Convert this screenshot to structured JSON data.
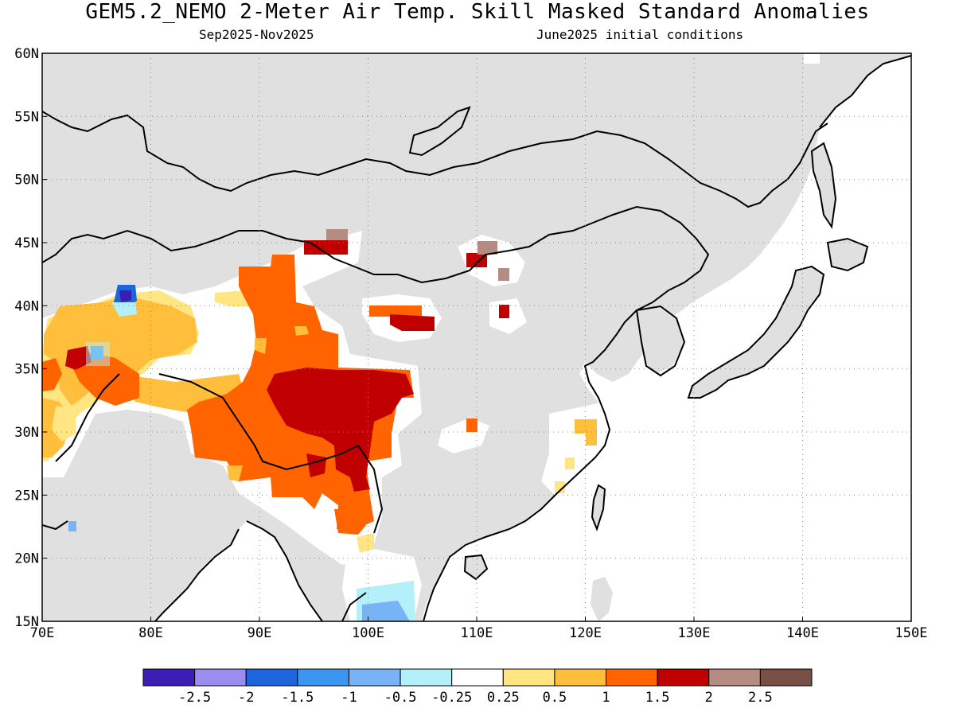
{
  "title": "GEM5.2_NEMO 2-Meter Air Temp. Skill Masked Standard Anomalies",
  "subtitle_left": "Sep2025-Nov2025",
  "subtitle_right": "June2025 initial conditions",
  "map": {
    "lon_range": [
      70,
      150
    ],
    "lat_range": [
      15,
      60
    ],
    "lon_ticks": [
      "70E",
      "80E",
      "90E",
      "100E",
      "110E",
      "120E",
      "130E",
      "140E",
      "150E"
    ],
    "lat_ticks": [
      "15N",
      "20N",
      "25N",
      "30N",
      "35N",
      "40N",
      "45N",
      "50N",
      "55N",
      "60N"
    ],
    "land_color": "#e0e0e0",
    "ocean_color": "#ffffff",
    "grid": "dotted"
  },
  "colorbar": {
    "colors": [
      "#3c1eb4",
      "#9b8cf0",
      "#1e64dc",
      "#3c96f0",
      "#78b4f5",
      "#b4f0fa",
      "#ffffff",
      "#ffe682",
      "#ffbe3c",
      "#ff6400",
      "#c00000",
      "#b48c82",
      "#785046"
    ],
    "labels": [
      "-2.5",
      "-2",
      "-1.5",
      "-1",
      "-0.5",
      "-0.25",
      "0.25",
      "0.5",
      "1",
      "1.5",
      "2",
      "2.5"
    ]
  },
  "anomaly_regions": [
    {
      "name": "tibet-west",
      "level": "1.5",
      "color": "#ff6400"
    },
    {
      "name": "tibet-east",
      "level": "2",
      "color": "#c00000"
    },
    {
      "name": "central-asia",
      "level": "1",
      "color": "#ffbe3c"
    },
    {
      "name": "indochina-cold",
      "level": "-0.5",
      "color": "#78b4f5"
    }
  ]
}
